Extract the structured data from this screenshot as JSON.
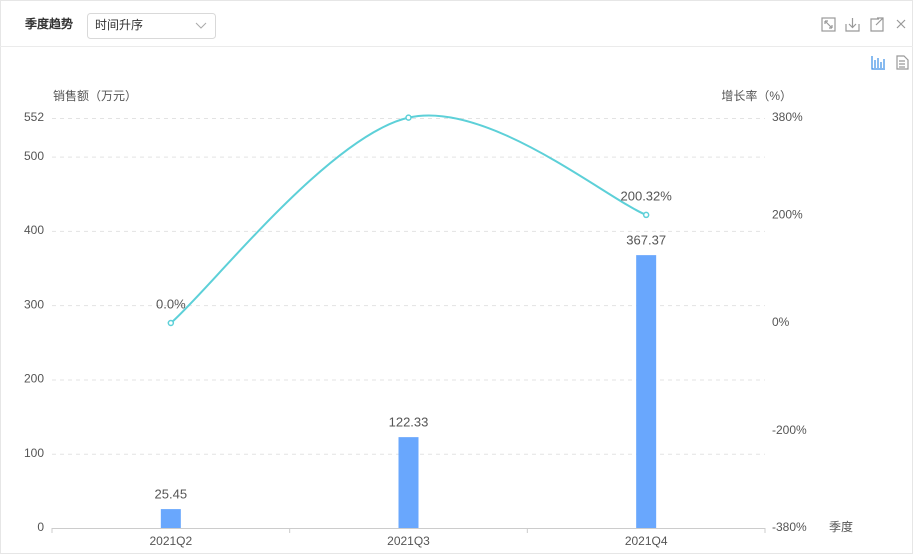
{
  "panel": {
    "title": "季度趋势",
    "sort_select": "时间升序"
  },
  "chart_data": {
    "type": "bar-line",
    "y_axis_label": "销售额（万元）",
    "y2_axis_label": "增长率（%）",
    "x_axis_label": "季度",
    "categories": [
      "2021Q2",
      "2021Q3",
      "2021Q4"
    ],
    "series": [
      {
        "type": "bar",
        "color": "#69a7fd",
        "values": [
          25.45,
          122.33,
          367.37
        ]
      },
      {
        "type": "line",
        "axis": "y2",
        "color": "#5dd0d8",
        "smooth": true,
        "values": [
          0.0,
          380.67,
          200.32
        ],
        "value_labels": [
          "0.0%",
          null,
          "200.32%"
        ]
      }
    ],
    "ylim": [
      0,
      552
    ],
    "yticks": [
      0,
      100,
      200,
      300,
      400,
      500,
      552
    ],
    "y2lim": [
      -380,
      380
    ],
    "y2ticks": [
      {
        "value": -380,
        "label": "-380%"
      },
      {
        "value": -200,
        "label": "-200%"
      },
      {
        "value": 0,
        "label": "0%"
      },
      {
        "value": 200,
        "label": "200%"
      },
      {
        "value": 380,
        "label": "380%"
      }
    ],
    "grid": true
  }
}
